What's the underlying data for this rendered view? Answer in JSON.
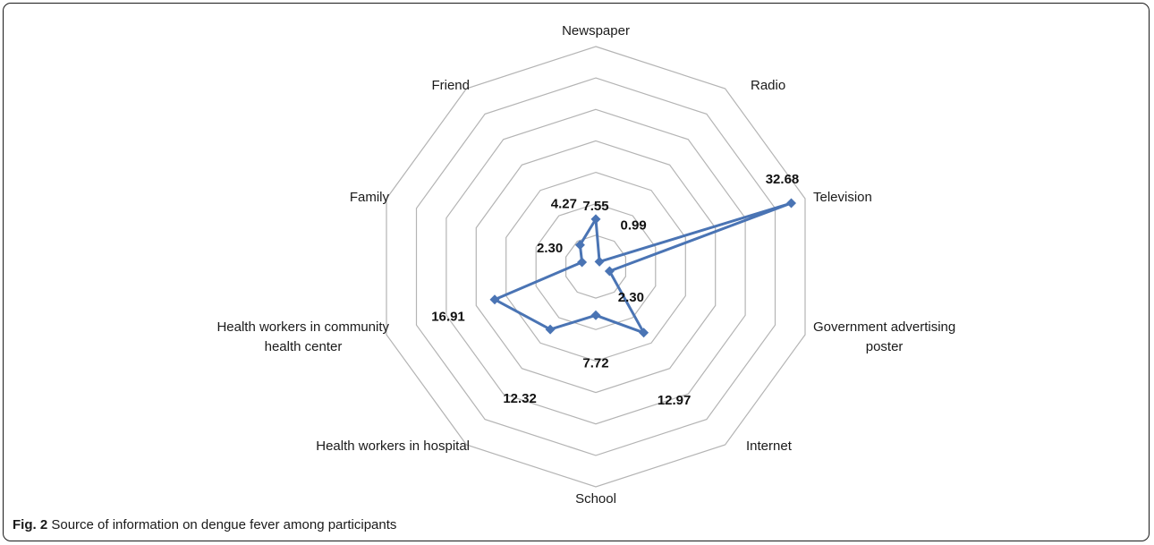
{
  "figure": {
    "caption_label": "Fig. 2",
    "caption_text": "Source of information on dengue fever among participants"
  },
  "chart_data": {
    "type": "radar",
    "categories": [
      "Newspaper",
      "Radio",
      "Television",
      "Government advertising poster",
      "Internet",
      "School",
      "Health workers in hospital",
      "Health workers in community health center",
      "Family",
      "Friend"
    ],
    "category_display": [
      [
        "Newspaper"
      ],
      [
        "Radio"
      ],
      [
        "Television"
      ],
      [
        "Government advertising",
        "poster"
      ],
      [
        "Internet"
      ],
      [
        "School"
      ],
      [
        "Health workers in hospital"
      ],
      [
        "Health workers in community",
        "health center"
      ],
      [
        "Family"
      ],
      [
        "Friend"
      ]
    ],
    "values": [
      7.55,
      0.99,
      32.68,
      2.3,
      12.97,
      7.72,
      12.32,
      16.91,
      2.3,
      4.27
    ],
    "value_labels": [
      "7.55",
      "0.99",
      "32.68",
      "2.30",
      "12.97",
      "7.72",
      "12.32",
      "16.91",
      "2.30",
      "4.27"
    ],
    "r_range": [
      0,
      35
    ],
    "grid_rings": 7,
    "grid": true,
    "series_color": "#4a74b4",
    "grid_color": "#b4b4b4"
  }
}
